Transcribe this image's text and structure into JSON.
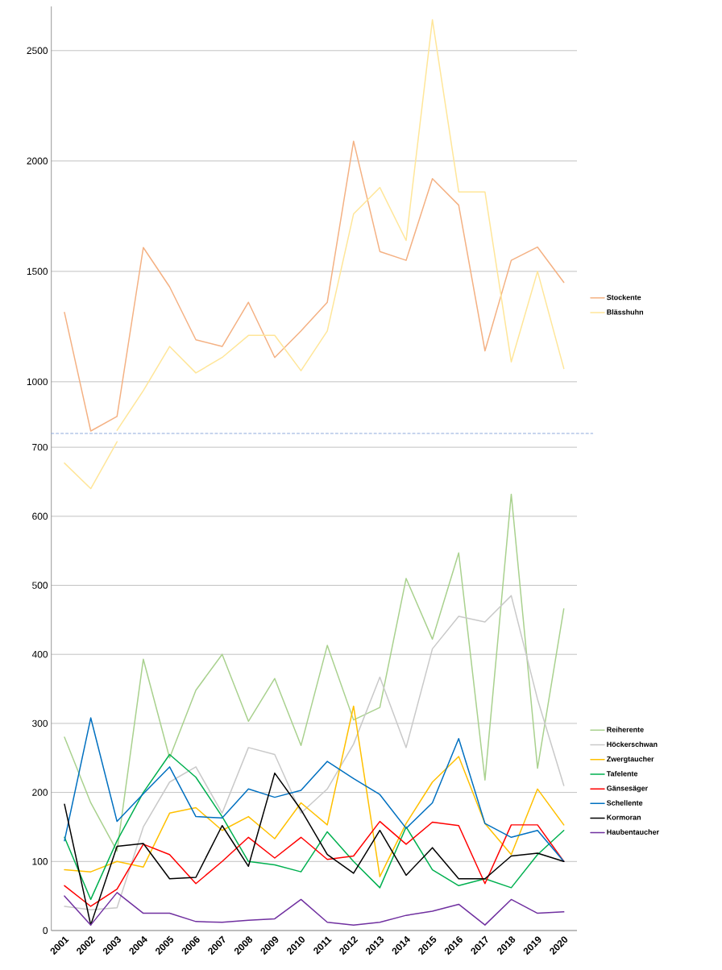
{
  "chart_data": [
    {
      "type": "line",
      "categories": [
        "2001",
        "2002",
        "2003",
        "2004",
        "2005",
        "2006",
        "2007",
        "2008",
        "2009",
        "2010",
        "2011",
        "2012",
        "2013",
        "2014",
        "2015",
        "2016",
        "2017",
        "2018",
        "2019",
        "2020"
      ],
      "ylim": [
        766,
        2700
      ],
      "yticks": [
        1000,
        1500,
        2000,
        2500
      ],
      "grid": "y",
      "legend": "right",
      "tick_labels": "y",
      "marker": "none",
      "line_style": "solid",
      "series": [
        {
          "name": "Stockente",
          "color": "#f4b183",
          "values": [
            1314,
            777,
            843,
            1608,
            1430,
            1190,
            1160,
            1360,
            1110,
            1230,
            1360,
            2090,
            1590,
            1550,
            1920,
            1800,
            1140,
            1550,
            1610,
            1450
          ]
        },
        {
          "name": "Blässhuhn",
          "color": "#ffe699",
          "values": [
            null,
            null,
            780,
            960,
            1160,
            1040,
            1110,
            1210,
            1210,
            1050,
            1230,
            1760,
            1880,
            1640,
            2640,
            1860,
            1860,
            1090,
            1500,
            1060
          ]
        }
      ]
    },
    {
      "type": "line",
      "categories": [
        "2001",
        "2002",
        "2003",
        "2004",
        "2005",
        "2006",
        "2007",
        "2008",
        "2009",
        "2010",
        "2011",
        "2012",
        "2013",
        "2014",
        "2015",
        "2016",
        "2017",
        "2018",
        "2019",
        "2020"
      ],
      "ylim": [
        0,
        720
      ],
      "yticks": [
        0,
        100,
        200,
        300,
        400,
        500,
        600,
        700
      ],
      "grid": "y",
      "legend": "right",
      "marker": "none",
      "line_style": "solid",
      "ref_lines": [
        {
          "axis": "y",
          "value": 720,
          "color": "#8faadc",
          "line_style": "dashed"
        }
      ],
      "series": [
        {
          "color": "#ffe699",
          "values": [
            677,
            640,
            708,
            null,
            null,
            null,
            null,
            null,
            null,
            null,
            null,
            null,
            null,
            null,
            null,
            null,
            null,
            null,
            null,
            null
          ]
        },
        {
          "name": "Reiherente",
          "color": "#a9d18e",
          "values": [
            280,
            185,
            115,
            393,
            250,
            348,
            400,
            303,
            365,
            268,
            413,
            305,
            323,
            510,
            422,
            547,
            218,
            632,
            235,
            466
          ]
        },
        {
          "name": "Höckerschwan",
          "color": "#c9c9c9",
          "values": [
            35,
            30,
            33,
            150,
            215,
            237,
            170,
            265,
            255,
            170,
            205,
            270,
            367,
            265,
            408,
            455,
            447,
            485,
            335,
            210
          ]
        },
        {
          "name": "Zwergtaucher",
          "color": "#ffc000",
          "values": [
            88,
            85,
            100,
            92,
            170,
            178,
            145,
            165,
            133,
            185,
            153,
            325,
            78,
            155,
            215,
            252,
            155,
            110,
            205,
            153
          ]
        },
        {
          "name": "Tafelente",
          "color": "#00b050",
          "values": [
            135,
            45,
            130,
            200,
            255,
            222,
            165,
            100,
            95,
            85,
            143,
            100,
            62,
            150,
            88,
            65,
            75,
            62,
            110,
            145
          ]
        },
        {
          "name": "Gänsesäger",
          "color": "#ff0000",
          "values": [
            65,
            35,
            60,
            125,
            110,
            68,
            100,
            135,
            105,
            135,
            103,
            108,
            158,
            125,
            157,
            152,
            68,
            153,
            153,
            100
          ]
        },
        {
          "name": "Schellente",
          "color": "#0070c0",
          "values": [
            130,
            308,
            158,
            198,
            237,
            165,
            163,
            205,
            193,
            203,
            245,
            220,
            197,
            148,
            185,
            278,
            155,
            135,
            145,
            100
          ]
        },
        {
          "name": "Kormoran",
          "color": "#000000",
          "values": [
            183,
            8,
            122,
            126,
            75,
            77,
            152,
            93,
            228,
            175,
            110,
            83,
            145,
            80,
            120,
            75,
            75,
            108,
            112,
            100
          ]
        },
        {
          "name": "Haubentaucher",
          "color": "#7030a0",
          "values": [
            50,
            8,
            55,
            25,
            25,
            13,
            12,
            15,
            17,
            45,
            12,
            8,
            12,
            22,
            28,
            38,
            8,
            45,
            25,
            27
          ]
        }
      ]
    }
  ]
}
